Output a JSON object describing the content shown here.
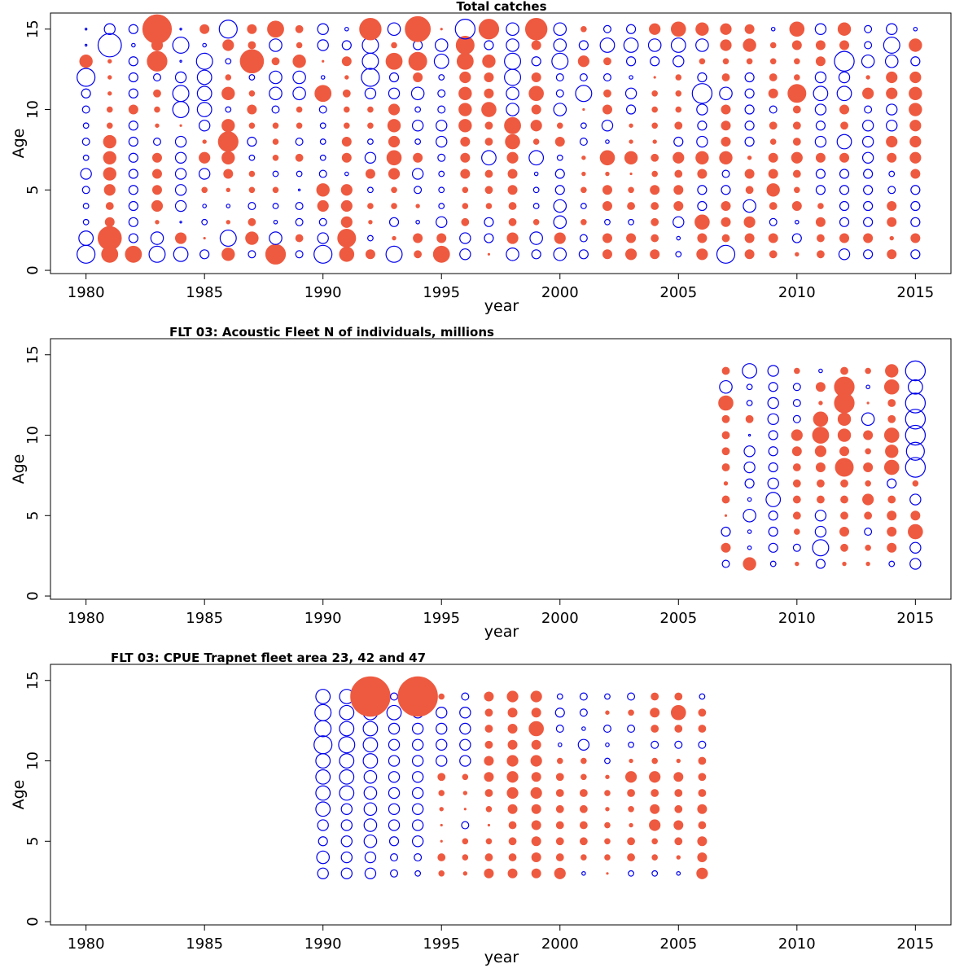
{
  "colors": {
    "positive": "#ee5a40",
    "negative": "#0000ee",
    "frame": "#000000",
    "background": "#ffffff"
  },
  "chart_data": [
    {
      "type": "scatter",
      "subtype": "bubble",
      "title": "Total catches",
      "xlabel": "year",
      "ylabel": "Age",
      "xlim": [
        1978.5,
        2016.5
      ],
      "ylim": [
        -0.2,
        16
      ],
      "x_ticks": [
        1980,
        1985,
        1990,
        1995,
        2000,
        2005,
        2010,
        2015
      ],
      "y_ticks": [
        0,
        5,
        10,
        15
      ],
      "grid": false,
      "series_note": "filled red = positive residual, open blue = negative residual; value = signed bubble size",
      "years": [
        1980,
        1981,
        1982,
        1983,
        1984,
        1985,
        1986,
        1987,
        1988,
        1989,
        1990,
        1991,
        1992,
        1993,
        1994,
        1995,
        1996,
        1997,
        1998,
        1999,
        2000,
        2001,
        2002,
        2003,
        2004,
        2005,
        2006,
        2007,
        2008,
        2009,
        2010,
        2011,
        2012,
        2013,
        2014,
        2015
      ],
      "ages": [
        1,
        2,
        3,
        4,
        5,
        6,
        7,
        8,
        9,
        10,
        11,
        12,
        13,
        14,
        15
      ],
      "values": {
        "1980": [
          -1.0,
          -0.8,
          -0.3,
          -0.3,
          -0.4,
          -0.6,
          -0.3,
          -0.4,
          -0.3,
          -0.4,
          -0.5,
          -1.0,
          0.7,
          -0.1,
          -0.1
        ],
        "1981": [
          0.9,
          1.3,
          0.5,
          0.4,
          0.6,
          0.7,
          0.7,
          0.7,
          0.3,
          0.3,
          0.2,
          0.2,
          0.2,
          -1.3,
          -0.6
        ],
        "1982": [
          0.9,
          -0.5,
          -0.5,
          -0.5,
          -0.5,
          -0.5,
          -0.5,
          -0.5,
          -0.5,
          0.5,
          -0.5,
          -0.5,
          -0.5,
          -0.2,
          -0.5
        ],
        "1983": [
          -0.9,
          -0.7,
          0.2,
          0.6,
          0.5,
          0.5,
          0.5,
          -0.4,
          0.2,
          0.3,
          0.4,
          -0.4,
          1.1,
          0.6,
          1.6
        ],
        "1984": [
          -0.8,
          0.6,
          -0.1,
          -0.6,
          -0.6,
          -0.6,
          -0.6,
          -0.6,
          0.1,
          -0.9,
          -0.9,
          -0.6,
          -0.1,
          -0.9,
          -0.1
        ],
        "1985": [
          -0.5,
          0.1,
          -0.3,
          -0.2,
          0.3,
          -0.6,
          0.6,
          0.2,
          -0.6,
          -0.8,
          -0.8,
          -0.8,
          -0.9,
          -0.2,
          0.5
        ],
        "1986": [
          0.7,
          -0.9,
          0.2,
          -0.2,
          0.2,
          0.5,
          0.7,
          1.1,
          0.7,
          -0.3,
          0.7,
          0.3,
          -0.3,
          0.6,
          -1.0
        ],
        "1987": [
          -0.4,
          0.7,
          0.4,
          -0.4,
          0.3,
          0.3,
          -0.3,
          -0.5,
          0.3,
          0.5,
          0.3,
          -0.3,
          1.3,
          0.4,
          0.5
        ],
        "1988": [
          1.1,
          -0.7,
          -0.2,
          -0.3,
          0.3,
          -0.3,
          0.3,
          0.3,
          0.3,
          -0.4,
          -0.7,
          -0.7,
          0.4,
          -0.7,
          0.9
        ],
        "1989": [
          -0.4,
          0.4,
          -0.4,
          -0.4,
          -0.1,
          -0.3,
          0.4,
          -0.4,
          0.3,
          0.3,
          -0.7,
          -0.7,
          0.7,
          0.3,
          0.4
        ],
        "1990": [
          -1.0,
          -0.6,
          -0.4,
          0.6,
          0.7,
          -0.4,
          -0.3,
          -0.3,
          -0.3,
          -0.4,
          0.9,
          -0.2,
          0.1,
          -0.6,
          -0.6
        ],
        "1991": [
          0.8,
          1.0,
          0.6,
          0.6,
          0.6,
          -0.2,
          0.5,
          0.5,
          0.3,
          0.3,
          0.4,
          0.2,
          0.5,
          -0.5,
          -0.2
        ],
        "1992": [
          0.5,
          -0.3,
          0.2,
          0.3,
          -0.3,
          0.5,
          -0.6,
          -0.3,
          0.3,
          0.3,
          -0.6,
          -1.0,
          -0.9,
          -0.9,
          1.2
        ],
        "1993": [
          -0.9,
          0.2,
          -0.5,
          0.3,
          0.3,
          0.6,
          0.8,
          0.6,
          0.7,
          0.6,
          -0.6,
          -0.5,
          0.9,
          0.3,
          -0.7
        ],
        "1994": [
          0.4,
          0.5,
          -0.2,
          0.2,
          -0.4,
          -0.6,
          0.5,
          -0.3,
          -0.6,
          -0.3,
          -0.7,
          0.5,
          1.0,
          -0.5,
          1.4
        ],
        "1995": [
          0.9,
          0.5,
          -0.6,
          -0.3,
          -0.3,
          -0.3,
          -0.4,
          -0.6,
          -0.6,
          -0.4,
          -0.4,
          -0.3,
          -0.8,
          -0.7,
          0.1
        ],
        "1996": [
          -0.6,
          -0.6,
          0.4,
          0.3,
          0.3,
          0.5,
          0.5,
          0.5,
          0.7,
          0.7,
          0.7,
          0.6,
          0.9,
          1.0,
          -1.1
        ],
        "1997": [
          0.1,
          -0.5,
          -0.5,
          0.3,
          0.4,
          0.4,
          -0.8,
          0.4,
          0.4,
          0.8,
          0.5,
          0.5,
          0.7,
          -0.5,
          1.1
        ],
        "1998": [
          -0.7,
          0.6,
          0.4,
          0.4,
          0.5,
          0.5,
          0.6,
          0.8,
          0.9,
          -0.7,
          -0.7,
          -0.9,
          -0.9,
          -0.7,
          -0.7
        ],
        "1999": [
          -0.5,
          -0.7,
          0.3,
          -0.3,
          -0.3,
          -0.2,
          -0.8,
          0.3,
          0.6,
          0.5,
          0.8,
          0.5,
          -0.5,
          0.5,
          1.2
        ],
        "2000": [
          -0.7,
          0.6,
          -0.7,
          -0.7,
          -0.5,
          -0.5,
          -0.3,
          0.5,
          0.3,
          -0.7,
          -0.4,
          -0.4,
          -0.9,
          -0.7,
          -0.7
        ],
        "2001": [
          -0.5,
          -0.4,
          0.3,
          -0.3,
          0.3,
          0.2,
          0.2,
          -0.4,
          -0.3,
          0.1,
          -0.9,
          -0.4,
          0.6,
          -0.5,
          0.3
        ],
        "2002": [
          0.5,
          0.5,
          -0.3,
          0.5,
          0.5,
          0.2,
          0.8,
          -0.2,
          -0.6,
          0.5,
          0.4,
          -0.4,
          0.4,
          -0.8,
          -0.4
        ],
        "2003": [
          0.6,
          0.5,
          -0.3,
          0.4,
          0.3,
          0.1,
          0.7,
          0.2,
          0.2,
          -0.5,
          -0.6,
          -0.2,
          -0.5,
          -0.8,
          -0.5
        ],
        "2004": [
          0.5,
          0.4,
          0.4,
          0.4,
          0.5,
          0.3,
          0.4,
          0.2,
          0.3,
          0.3,
          0.3,
          0.1,
          -0.5,
          -0.7,
          0.6
        ],
        "2005": [
          -0.3,
          -0.2,
          -0.6,
          0.5,
          0.5,
          0.4,
          0.6,
          -0.5,
          0.4,
          0.3,
          0.3,
          0.3,
          -0.6,
          -0.8,
          0.8
        ],
        "2006": [
          0.6,
          0.5,
          0.8,
          -0.5,
          -0.5,
          0.5,
          0.7,
          -0.6,
          -0.5,
          -0.6,
          -1.1,
          -0.5,
          0.3,
          -0.7,
          0.7
        ],
        "2007": [
          -1.0,
          0.4,
          0.5,
          0.5,
          -0.5,
          -0.4,
          0.7,
          0.5,
          0.5,
          0.5,
          -0.7,
          0.4,
          0.3,
          0.6,
          0.6
        ],
        "2008": [
          0.5,
          0.5,
          0.6,
          -0.7,
          0.4,
          0.5,
          0.2,
          -0.5,
          -0.5,
          -0.5,
          -0.5,
          -0.5,
          0.3,
          0.7,
          0.5
        ],
        "2009": [
          0.4,
          0.5,
          -0.4,
          0.4,
          0.7,
          0.5,
          0.5,
          0.3,
          0.4,
          -0.4,
          0.5,
          0.4,
          0.3,
          0.3,
          -0.2
        ],
        "2010": [
          0.2,
          -0.5,
          -0.2,
          0.5,
          0.3,
          0.4,
          0.6,
          0.4,
          0.4,
          0.4,
          1.0,
          0.3,
          0.3,
          0.5,
          0.8
        ],
        "2011": [
          0.4,
          0.4,
          0.5,
          0.3,
          -0.5,
          -0.5,
          0.5,
          -0.6,
          -0.5,
          -0.6,
          -0.8,
          -0.6,
          0.5,
          0.5,
          -0.6
        ],
        "2012": [
          -0.6,
          0.5,
          -0.5,
          -0.5,
          -0.5,
          -0.5,
          0.5,
          -0.8,
          0.4,
          0.5,
          -0.8,
          -0.6,
          -1.1,
          0.5,
          0.7
        ],
        "2013": [
          -0.5,
          0.5,
          -0.5,
          -0.5,
          -0.5,
          -0.5,
          -0.6,
          -0.6,
          -0.6,
          -0.4,
          0.6,
          0.2,
          -0.7,
          -0.4,
          -0.4
        ],
        "2014": [
          0.5,
          0.2,
          0.5,
          0.5,
          -0.4,
          -0.3,
          0.5,
          0.6,
          -0.6,
          -0.6,
          0.6,
          0.6,
          -0.7,
          -0.9,
          -0.6
        ],
        "2015": [
          -0.5,
          0.5,
          -0.5,
          -0.5,
          -0.5,
          0.5,
          0.6,
          0.6,
          0.6,
          0.7,
          0.7,
          0.6,
          -0.5,
          0.7,
          -0.2
        ]
      }
    },
    {
      "type": "scatter",
      "subtype": "bubble",
      "title": "FLT 03: Acoustic Fleet   N of individuals, millions",
      "xlabel": "year",
      "ylabel": "Age",
      "xlim": [
        1978.5,
        2016.5
      ],
      "ylim": [
        -0.2,
        16
      ],
      "x_ticks": [
        1980,
        1985,
        1990,
        1995,
        2000,
        2005,
        2010,
        2015
      ],
      "y_ticks": [
        0,
        5,
        10,
        15
      ],
      "grid": false,
      "years": [
        2007,
        2008,
        2009,
        2010,
        2011,
        2012,
        2013,
        2014,
        2015
      ],
      "ages": [
        2,
        3,
        4,
        5,
        6,
        7,
        8,
        9,
        10,
        11,
        12,
        13,
        14
      ],
      "values": {
        "2007": [
          -0.4,
          0.5,
          -0.5,
          0.1,
          0.4,
          0.2,
          0.4,
          0.4,
          0.4,
          0.4,
          0.8,
          -0.7,
          0.4
        ],
        "2008": [
          0.7,
          -0.2,
          -0.2,
          -0.7,
          -0.2,
          -0.5,
          -0.6,
          -0.6,
          -0.1,
          0.4,
          -0.3,
          -0.3,
          -0.8
        ],
        "2009": [
          -0.3,
          -0.5,
          -0.5,
          -0.5,
          -0.8,
          -0.6,
          -0.5,
          -0.5,
          -0.5,
          -0.6,
          -0.6,
          -0.5,
          -0.6
        ],
        "2010": [
          0.2,
          -0.4,
          0.3,
          0.4,
          0.4,
          0.4,
          0.4,
          0.5,
          0.6,
          -0.4,
          -0.4,
          -0.4,
          0.3
        ],
        "2011": [
          -0.5,
          -0.9,
          -0.6,
          -0.6,
          0.4,
          0.4,
          0.5,
          0.6,
          0.9,
          0.8,
          0.2,
          0.5,
          -0.2
        ],
        "2012": [
          0.2,
          0.4,
          0.5,
          0.4,
          0.4,
          0.4,
          1.0,
          0.5,
          0.7,
          0.7,
          1.1,
          1.1,
          0.4
        ],
        "2013": [
          0.2,
          0.3,
          -0.4,
          0.4,
          0.6,
          0.3,
          0.5,
          0.3,
          0.5,
          -0.7,
          0.1,
          -0.2,
          0.3
        ],
        "2014": [
          -0.3,
          0.5,
          0.5,
          0.5,
          0.4,
          -0.5,
          0.8,
          0.7,
          0.8,
          0.4,
          0.4,
          0.8,
          0.7
        ],
        "2015": [
          -0.6,
          -0.6,
          0.8,
          0.5,
          -0.6,
          0.3,
          -1.1,
          -1.0,
          -1.1,
          -1.1,
          -1.1,
          -0.8,
          -1.1
        ]
      }
    },
    {
      "type": "scatter",
      "subtype": "bubble",
      "title": "FLT 03: CPUE Trapnet fleet area 23, 42 and 47",
      "xlabel": "year",
      "ylabel": "Age",
      "xlim": [
        1978.5,
        2016.5
      ],
      "ylim": [
        -0.2,
        16
      ],
      "x_ticks": [
        1980,
        1985,
        1990,
        1995,
        2000,
        2005,
        2010,
        2015
      ],
      "y_ticks": [
        0,
        5,
        10,
        15
      ],
      "grid": false,
      "years": [
        1990,
        1991,
        1992,
        1993,
        1994,
        1995,
        1996,
        1997,
        1998,
        1999,
        2000,
        2001,
        2002,
        2003,
        2004,
        2005,
        2006
      ],
      "ages": [
        3,
        4,
        5,
        6,
        7,
        8,
        9,
        10,
        11,
        12,
        13,
        14
      ],
      "values": {
        "1990": [
          -0.6,
          -0.7,
          -0.5,
          -0.6,
          -0.8,
          -0.8,
          -0.8,
          -0.8,
          -1.0,
          -0.9,
          -0.9,
          -0.8
        ],
        "1991": [
          -0.6,
          -0.6,
          -0.6,
          -0.6,
          -0.6,
          -0.8,
          -0.8,
          -0.8,
          -0.9,
          -0.8,
          -0.8,
          -0.8
        ],
        "1992": [
          -0.6,
          -0.6,
          -0.7,
          -0.7,
          -0.7,
          -0.7,
          -0.7,
          -0.8,
          -0.8,
          -0.8,
          -0.8,
          2.2
        ],
        "1993": [
          -0.4,
          -0.4,
          -0.5,
          -0.6,
          -0.6,
          -0.6,
          -0.6,
          -0.6,
          -0.6,
          -0.6,
          -0.8,
          -0.4
        ],
        "1994": [
          -0.3,
          -0.4,
          -0.6,
          -0.6,
          -0.6,
          -0.6,
          -0.6,
          -0.6,
          -0.6,
          -0.6,
          -0.6,
          2.2
        ],
        "1995": [
          0.3,
          0.4,
          0.1,
          0.1,
          0.2,
          0.3,
          0.4,
          -0.6,
          -0.6,
          -0.6,
          -0.6,
          0.3
        ],
        "1996": [
          0.2,
          0.3,
          0.3,
          -0.4,
          0.1,
          0.2,
          0.3,
          -0.6,
          -0.6,
          -0.6,
          -0.6,
          -0.4
        ],
        "1997": [
          0.5,
          0.4,
          0.3,
          0.1,
          0.3,
          0.4,
          0.5,
          0.5,
          0.4,
          0.4,
          0.4,
          0.5
        ],
        "1998": [
          0.5,
          0.4,
          0.4,
          0.4,
          0.5,
          0.6,
          0.6,
          0.6,
          0.5,
          0.5,
          0.5,
          0.6
        ],
        "1999": [
          0.5,
          0.5,
          0.5,
          0.5,
          0.5,
          0.6,
          0.5,
          0.6,
          0.5,
          0.8,
          0.5,
          0.6
        ],
        "2000": [
          0.6,
          0.4,
          0.4,
          0.4,
          0.4,
          0.4,
          0.4,
          0.3,
          -0.2,
          -0.4,
          -0.5,
          -0.3
        ],
        "2001": [
          -0.2,
          0.3,
          0.4,
          0.4,
          0.4,
          0.4,
          0.3,
          0.3,
          -0.6,
          -0.2,
          -0.4,
          -0.4
        ],
        "2002": [
          0.1,
          0.3,
          0.3,
          0.3,
          0.2,
          0.3,
          0.2,
          -0.3,
          -0.2,
          -0.4,
          0.2,
          -0.3
        ],
        "2003": [
          -0.3,
          0.4,
          0.4,
          0.2,
          0.3,
          0.4,
          0.6,
          0.2,
          -0.3,
          -0.4,
          0.3,
          -0.4
        ],
        "2004": [
          -0.3,
          0.3,
          0.3,
          0.6,
          0.5,
          0.4,
          0.6,
          0.3,
          -0.4,
          0.4,
          0.5,
          0.4
        ],
        "2005": [
          -0.2,
          0.2,
          0.4,
          0.5,
          0.4,
          0.4,
          0.5,
          0.2,
          -0.4,
          0.4,
          0.8,
          0.4
        ],
        "2006": [
          0.6,
          0.5,
          0.5,
          0.4,
          0.5,
          0.4,
          0.4,
          0.4,
          -0.4,
          0.4,
          0.4,
          -0.3
        ]
      }
    }
  ]
}
